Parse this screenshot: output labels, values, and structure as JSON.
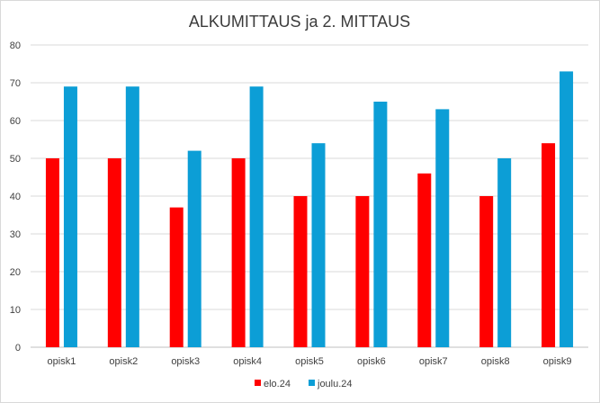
{
  "chart_data": {
    "type": "bar",
    "title": "ALKUMITTAUS ja 2. MITTAUS",
    "xlabel": "",
    "ylabel": "",
    "categories": [
      "opisk1",
      "opisk2",
      "opisk3",
      "opisk4",
      "opisk5",
      "opisk6",
      "opisk7",
      "opisk8",
      "opisk9"
    ],
    "series": [
      {
        "name": "elo.24",
        "color": "#ff0000",
        "values": [
          50,
          50,
          37,
          50,
          40,
          40,
          46,
          40,
          54
        ]
      },
      {
        "name": "joulu.24",
        "color": "#0c9ed6",
        "values": [
          69,
          69,
          52,
          69,
          54,
          65,
          63,
          50,
          73
        ]
      }
    ],
    "ylim": [
      0,
      80
    ],
    "yticks": [
      "0",
      "10",
      "20",
      "30",
      "40",
      "50",
      "60",
      "70",
      "80"
    ],
    "grid": true,
    "legend": "bottom"
  }
}
